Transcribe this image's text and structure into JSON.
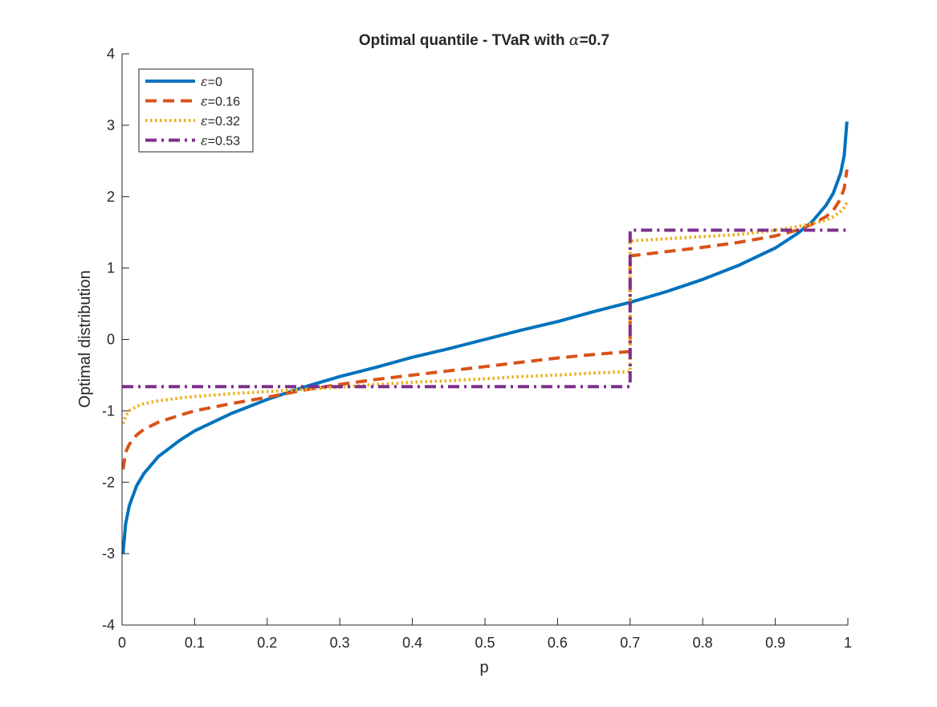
{
  "chart_data": {
    "type": "line",
    "title_prefix": "Optimal quantile - TVaR with ",
    "title_symbol": "α",
    "title_suffix": "=0.7",
    "xlabel": "p",
    "ylabel": "Optimal distribution",
    "xlim": [
      0,
      1
    ],
    "ylim": [
      -4,
      4
    ],
    "xticks": [
      0,
      0.1,
      0.2,
      0.3,
      0.4,
      0.5,
      0.6,
      0.7,
      0.8,
      0.9,
      1
    ],
    "xtick_labels": [
      "0",
      "0.1",
      "0.2",
      "0.3",
      "0.4",
      "0.5",
      "0.6",
      "0.7",
      "0.8",
      "0.9",
      "1"
    ],
    "yticks": [
      -4,
      -3,
      -2,
      -1,
      0,
      1,
      2,
      3,
      4
    ],
    "ytick_labels": [
      "-4",
      "-3",
      "-2",
      "-1",
      "0",
      "1",
      "2",
      "3",
      "4"
    ],
    "grid": false,
    "legend_position": "top-left",
    "series": [
      {
        "name": "ε=0",
        "legend_symbol": "ε",
        "legend_value": "=0",
        "color": "#0072bd",
        "style": "solid",
        "x": [
          0.0013,
          0.005,
          0.01,
          0.02,
          0.03,
          0.05,
          0.08,
          0.1,
          0.15,
          0.2,
          0.25,
          0.3,
          0.35,
          0.4,
          0.45,
          0.5,
          0.55,
          0.6,
          0.65,
          0.7,
          0.75,
          0.8,
          0.85,
          0.9,
          0.93,
          0.95,
          0.97,
          0.98,
          0.99,
          0.995,
          0.9987
        ],
        "y": [
          -3.0,
          -2.58,
          -2.33,
          -2.05,
          -1.88,
          -1.64,
          -1.41,
          -1.28,
          -1.04,
          -0.84,
          -0.67,
          -0.52,
          -0.39,
          -0.25,
          -0.13,
          0.0,
          0.13,
          0.25,
          0.39,
          0.52,
          0.67,
          0.84,
          1.04,
          1.28,
          1.48,
          1.64,
          1.88,
          2.05,
          2.33,
          2.58,
          3.05
        ]
      },
      {
        "name": "ε=0.16",
        "legend_symbol": "ε",
        "legend_value": "=0.16",
        "color": "#d95319",
        "style": "dashed",
        "x": [
          0.0013,
          0.005,
          0.01,
          0.02,
          0.03,
          0.05,
          0.08,
          0.1,
          0.15,
          0.2,
          0.25,
          0.3,
          0.35,
          0.4,
          0.45,
          0.5,
          0.55,
          0.6,
          0.65,
          0.699,
          0.7,
          0.7,
          0.75,
          0.8,
          0.85,
          0.9,
          0.93,
          0.95,
          0.97,
          0.98,
          0.99,
          0.995,
          0.9987
        ],
        "y": [
          -1.82,
          -1.58,
          -1.47,
          -1.34,
          -1.26,
          -1.16,
          -1.06,
          -1.0,
          -0.9,
          -0.81,
          -0.71,
          -0.63,
          -0.56,
          -0.5,
          -0.44,
          -0.38,
          -0.32,
          -0.26,
          -0.21,
          -0.17,
          -0.17,
          1.17,
          1.23,
          1.29,
          1.36,
          1.45,
          1.53,
          1.61,
          1.72,
          1.81,
          1.97,
          2.12,
          2.38
        ]
      },
      {
        "name": "ε=0.32",
        "legend_symbol": "ε",
        "legend_value": "=0.32",
        "color": "#edb120",
        "style": "dotted",
        "x": [
          0.0013,
          0.005,
          0.01,
          0.02,
          0.03,
          0.05,
          0.08,
          0.1,
          0.15,
          0.2,
          0.25,
          0.3,
          0.35,
          0.4,
          0.45,
          0.5,
          0.55,
          0.6,
          0.65,
          0.699,
          0.7,
          0.7,
          0.75,
          0.8,
          0.85,
          0.9,
          0.93,
          0.95,
          0.97,
          0.98,
          0.99,
          0.995,
          0.9987
        ],
        "y": [
          -1.18,
          -1.07,
          -1.0,
          -0.94,
          -0.9,
          -0.86,
          -0.82,
          -0.8,
          -0.76,
          -0.73,
          -0.7,
          -0.67,
          -0.63,
          -0.6,
          -0.58,
          -0.55,
          -0.52,
          -0.5,
          -0.47,
          -0.45,
          -0.45,
          1.38,
          1.41,
          1.44,
          1.47,
          1.53,
          1.58,
          1.62,
          1.67,
          1.72,
          1.79,
          1.85,
          1.92
        ]
      },
      {
        "name": "ε=0.53",
        "legend_symbol": "ε",
        "legend_value": "=0.53",
        "color": "#7e2f8e",
        "style": "dashdot",
        "x": [
          0,
          0.7,
          0.7,
          1
        ],
        "y": [
          -0.66,
          -0.66,
          1.53,
          1.53
        ]
      }
    ]
  }
}
